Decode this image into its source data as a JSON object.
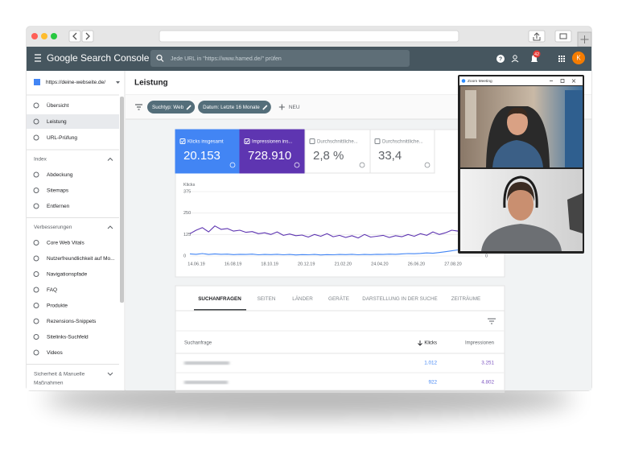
{
  "header": {
    "product": "Google Search Console",
    "search_placeholder": "Jede URL in \"https://www.hamed.de/\" prüfen",
    "notification_count": "42",
    "avatar": "K"
  },
  "sidebar": {
    "property": "https://deine-webseite.de/",
    "items": [
      "Übersicht",
      "Leistung",
      "URL-Prüfung"
    ],
    "sections": [
      {
        "title": "Index",
        "items": [
          "Abdeckung",
          "Sitemaps",
          "Entfernen"
        ]
      },
      {
        "title": "Verbesserungen",
        "items": [
          "Core Web Vitals",
          "Nutzerfreundlichkeit auf Mo...",
          "Navigationspfade",
          "FAQ",
          "Produkte",
          "Rezensions-Snippets",
          "Sitelinks-Suchfeld",
          "Videos"
        ]
      },
      {
        "title": "Sicherheit & Manuelle Maßnahmen",
        "items": []
      }
    ]
  },
  "page_title": "Leistung",
  "filters": {
    "chips": [
      "Suchtyp: Web",
      "Datum: Letzte 16 Monate"
    ],
    "new": "NEU"
  },
  "metrics": [
    {
      "label": "Klicks insgesamt",
      "value": "20.153",
      "color": "#4285f4"
    },
    {
      "label": "Impressionen ins...",
      "value": "728.910",
      "color": "#5e35b1"
    },
    {
      "label": "Durchschnittliche...",
      "value": "2,8 %"
    },
    {
      "label": "Durchschnittliche...",
      "value": "33,4"
    }
  ],
  "chart": {
    "type": "line",
    "y_label": "Klicks",
    "ylim": [
      0,
      375
    ],
    "yticks": [
      0,
      125,
      250,
      375
    ],
    "y2ticks": [
      0
    ],
    "x_labels": [
      "14.06.19",
      "16.08.19",
      "18.10.19",
      "20.12.19",
      "21.02.20",
      "24.04.20",
      "26.06.20",
      "27.08.20"
    ],
    "series": [
      {
        "color": "#5e35b1",
        "values": [
          130,
          150,
          165,
          140,
          175,
          155,
          160,
          145,
          150,
          138,
          142,
          130,
          135,
          125,
          140,
          120,
          128,
          118,
          122,
          110,
          125,
          115,
          130,
          112,
          120,
          108,
          118,
          105,
          125,
          110,
          115,
          120,
          108,
          118,
          112,
          125,
          115,
          130,
          120,
          140,
          125,
          135,
          150,
          145,
          160,
          170,
          180,
          175
        ]
      },
      {
        "color": "#4285f4",
        "values": [
          12,
          10,
          14,
          9,
          12,
          10,
          11,
          8,
          10,
          9,
          11,
          7,
          9,
          8,
          10,
          7,
          9,
          6,
          8,
          7,
          9,
          6,
          8,
          7,
          9,
          8,
          10,
          7,
          9,
          8,
          10,
          9,
          11,
          10,
          12,
          14,
          13,
          15,
          18,
          16,
          20,
          25,
          30,
          35,
          45,
          55,
          70,
          65
        ]
      }
    ]
  },
  "table": {
    "tabs": [
      "SUCHANFRAGEN",
      "SEITEN",
      "LÄNDER",
      "GERÄTE",
      "DARSTELLUNG IN DER SUCHE",
      "ZEITRÄUME"
    ],
    "columns": [
      "Suchanfrage",
      "Klicks",
      "Impressionen"
    ],
    "rows": [
      {
        "clicks": "1.012",
        "impressions": "3.251"
      },
      {
        "clicks": "922",
        "impressions": "4.802"
      }
    ]
  },
  "zoom": {
    "title": "Zoom Meeting"
  }
}
